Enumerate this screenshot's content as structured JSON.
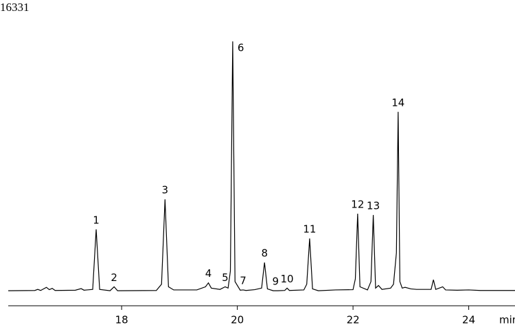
{
  "chart_data": {
    "type": "line",
    "title": "16331",
    "x_label": "min",
    "xlim": [
      16.04,
      24.8
    ],
    "xticks": [
      18,
      20,
      22,
      24
    ],
    "ylim": [
      0,
      100
    ],
    "color": "#000000",
    "x": [
      16.04,
      16.5,
      16.55,
      16.6,
      16.7,
      16.75,
      16.8,
      16.85,
      17.2,
      17.3,
      17.35,
      17.5,
      17.56,
      17.62,
      17.8,
      17.87,
      17.93,
      18.6,
      18.69,
      18.75,
      18.81,
      18.9,
      19.3,
      19.45,
      19.5,
      19.55,
      19.7,
      19.79,
      19.84,
      19.88,
      19.92,
      19.96,
      20.05,
      20.1,
      20.15,
      20.3,
      20.42,
      20.47,
      20.52,
      20.62,
      20.66,
      20.7,
      20.82,
      20.86,
      20.9,
      21.15,
      21.2,
      21.25,
      21.3,
      21.4,
      21.7,
      22.0,
      22.04,
      22.08,
      22.12,
      22.25,
      22.31,
      22.35,
      22.39,
      22.44,
      22.5,
      22.65,
      22.7,
      22.75,
      22.78,
      22.81,
      22.85,
      22.9,
      23.0,
      23.1,
      23.35,
      23.39,
      23.43,
      23.55,
      23.6,
      23.8,
      24.0,
      24.2,
      24.8
    ],
    "values": [
      0.5,
      0.6,
      1.0,
      0.6,
      1.8,
      0.9,
      1.4,
      0.6,
      0.7,
      1.3,
      0.7,
      1.0,
      24,
      1.0,
      0.5,
      2,
      0.5,
      0.6,
      3,
      35.5,
      2,
      0.8,
      0.8,
      2,
      3.5,
      1.5,
      1.0,
      2,
      1.5,
      8,
      96,
      4,
      0.7,
      0.8,
      0.6,
      0.9,
      1.5,
      11.3,
      1.2,
      0.5,
      0.5,
      0.5,
      0.6,
      1.5,
      0.6,
      0.8,
      3,
      20.5,
      1.2,
      0.5,
      0.8,
      0.9,
      5,
      30,
      2,
      0.8,
      4,
      29.5,
      1.5,
      2.5,
      1.0,
      1.5,
      3,
      15,
      69,
      4,
      1.5,
      1.8,
      1.2,
      1.0,
      1.0,
      4.7,
      1.0,
      2,
      0.8,
      0.7,
      0.8,
      0.6,
      0.6
    ],
    "peaks": [
      {
        "label": "1",
        "x": 17.56
      },
      {
        "label": "2",
        "x": 17.87
      },
      {
        "label": "3",
        "x": 18.75
      },
      {
        "label": "4",
        "x": 19.5
      },
      {
        "label": "5",
        "x": 19.79
      },
      {
        "label": "6",
        "x": 19.92
      },
      {
        "label": "7",
        "x": 20.1
      },
      {
        "label": "8",
        "x": 20.47
      },
      {
        "label": "9",
        "x": 20.66
      },
      {
        "label": "10",
        "x": 20.86
      },
      {
        "label": "11",
        "x": 21.25
      },
      {
        "label": "12",
        "x": 22.08
      },
      {
        "label": "13",
        "x": 22.35
      },
      {
        "label": "14",
        "x": 22.78
      }
    ]
  }
}
